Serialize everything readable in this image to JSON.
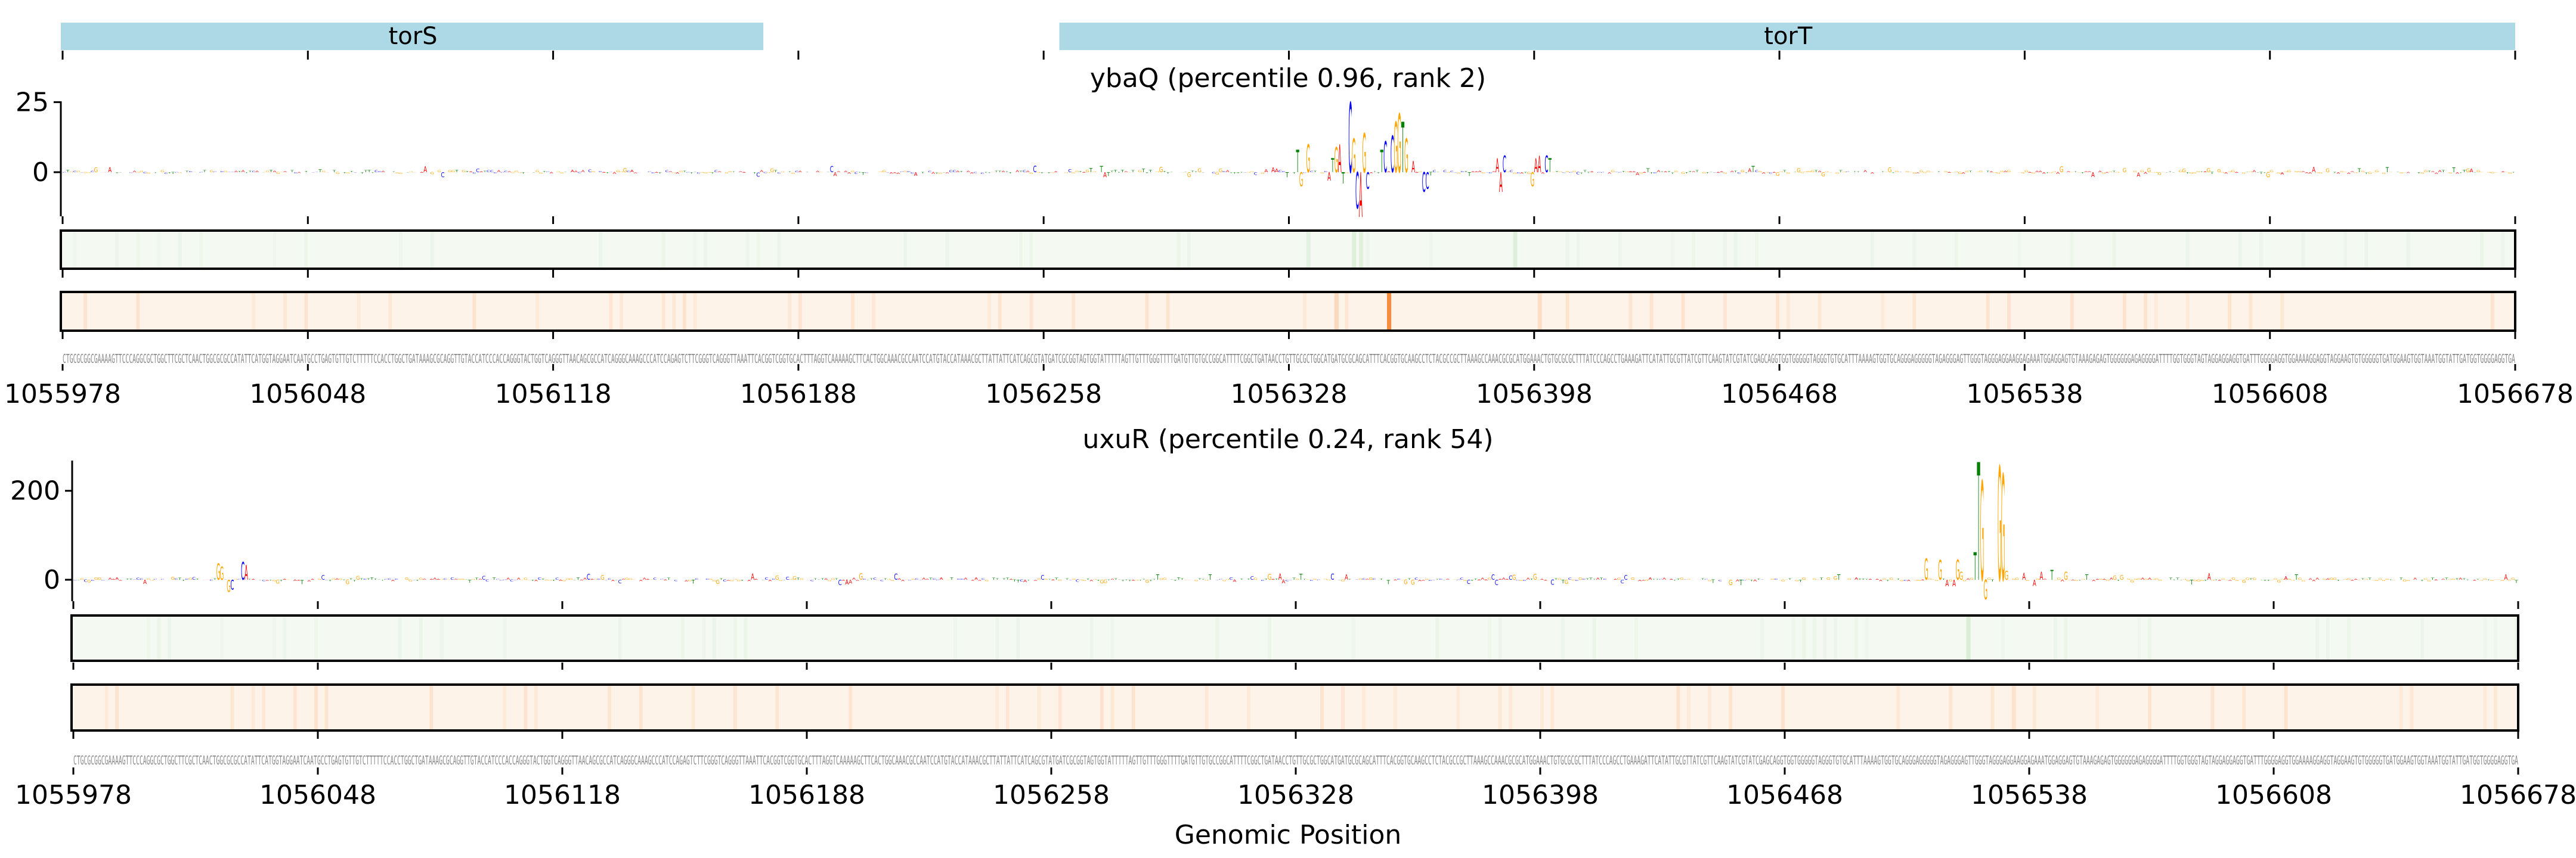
{
  "chart_data": {
    "type": "sequence-logo",
    "xlabel": "Genomic Position",
    "xlim": [
      1055978,
      1056678
    ],
    "xticks": [
      1055978,
      1056048,
      1056118,
      1056188,
      1056258,
      1056328,
      1056398,
      1056468,
      1056538,
      1056608,
      1056678
    ],
    "genes": [
      {
        "name": "torS",
        "start": 1055978,
        "end": 1056178
      },
      {
        "name": "torT",
        "start": 1056263,
        "end": 1056678
      }
    ],
    "gene_color": "#add8e6",
    "base_colors": {
      "A": "#ff0000",
      "C": "#0000ff",
      "G": "#ffa500",
      "T": "#008000"
    },
    "sequence": "CTGCGCGGCGAAAAGTTCCCAGGCGCTGGCTTCGCTCAACTGGCGCGCCATATTCATGGTAGGAATCAATGCCTGAGTGTTGTCTTTTTCCACCTGGCTGATAAAGCGCAGGTTGTACCATCCCACCAGGGTACTGGTCAGGGTTAACAGCGCCATCAGGGCAAAGCCCATCCAGAGTCTTCGGGTCAGGGTTAAATTCACGGTCGGTGCACTTTAGGTCAAAAAGCTTCACTGGCAAACGCCAATCCATGTACCATAAACGCTTATTATTCATCAGCGTATGATCGCGGTAGTGGTATTTTTAGTTGTTTGGGTTTTGATGTTGTGCCGGCATTTTCGGCTGATAACCTGTTGCGCTGGCATGATGCGCAGCATTTCACGGTGCAAGCCTCTACGCCGCTTAAAGCCAAACGCGCATGGAAACTGTGCGCGCTTTATCCCAGCCTGAAAGATTCATATTGCGTTATCGTTCAAGTATCGTATCGAGCAGGTGGTGGGGGTAGGGTGTGCATTTAAAAGTGGTGCAGGGAGGGGGTAGAGGGAGTTGGGTAGGGAGGAAGGAGAAATGGAGGAGTGTAAAGAGAGTGGGGGGAGAGGGGATTTTGGTGGGTAGTAGGAGGAGGTGATTTGGGGAGGTGGAAAAGGAGGTAGGAAGTGTGGGGGTGATGGAAGTGGTAAATGGTATTGATGGTGGGGAGGTGA",
    "panels": [
      {
        "title": "ybaQ (percentile 0.96, rank 2)",
        "yticks": [
          0,
          25
        ],
        "ylim": [
          -15.7,
          25.3
        ],
        "peaks": [
          {
            "i": 352,
            "v": 8
          },
          {
            "i": 353,
            "v": -5
          },
          {
            "i": 355,
            "v": 10
          },
          {
            "i": 361,
            "v": -3
          },
          {
            "i": 362,
            "v": 5
          },
          {
            "i": 363,
            "v": 9
          },
          {
            "i": 364,
            "v": 10
          },
          {
            "i": 365,
            "v": -4
          },
          {
            "i": 367,
            "v": 25
          },
          {
            "i": 368,
            "v": 12
          },
          {
            "i": 369,
            "v": -13
          },
          {
            "i": 370,
            "v": -16
          },
          {
            "i": 371,
            "v": 14
          },
          {
            "i": 372,
            "v": -6
          },
          {
            "i": 376,
            "v": 8
          },
          {
            "i": 377,
            "v": 11
          },
          {
            "i": 379,
            "v": 13
          },
          {
            "i": 380,
            "v": 18
          },
          {
            "i": 381,
            "v": 21
          },
          {
            "i": 382,
            "v": 18
          },
          {
            "i": 383,
            "v": 12
          },
          {
            "i": 385,
            "v": 4
          },
          {
            "i": 388,
            "v": -7
          },
          {
            "i": 389,
            "v": -6
          },
          {
            "i": 409,
            "v": 5
          },
          {
            "i": 410,
            "v": -7
          },
          {
            "i": 411,
            "v": 6
          },
          {
            "i": 419,
            "v": -5
          },
          {
            "i": 420,
            "v": 5
          },
          {
            "i": 421,
            "v": 6
          },
          {
            "i": 423,
            "v": 6
          },
          {
            "i": 424,
            "v": 5
          }
        ],
        "heat_green": [
          {
            "i": 355,
            "level": 0.3
          },
          {
            "i": 368,
            "level": 0.4
          },
          {
            "i": 370,
            "level": 0.35
          },
          {
            "i": 414,
            "level": 0.4
          }
        ],
        "heat_orange": [
          {
            "i": 363,
            "level": 0.25
          },
          {
            "i": 378,
            "level": 1.0
          },
          {
            "i": 421,
            "level": 0.2
          }
        ]
      },
      {
        "title": "uxuR (percentile 0.24, rank 54)",
        "yticks": [
          0,
          200
        ],
        "ylim": [
          -48,
          268
        ],
        "peaks": [
          {
            "i": 41,
            "v": 37
          },
          {
            "i": 42,
            "v": 30
          },
          {
            "i": 44,
            "v": -27
          },
          {
            "i": 45,
            "v": -22
          },
          {
            "i": 48,
            "v": 40
          },
          {
            "i": 49,
            "v": 33
          },
          {
            "i": 530,
            "v": 48
          },
          {
            "i": 534,
            "v": 44
          },
          {
            "i": 536,
            "v": -15
          },
          {
            "i": 538,
            "v": -15
          },
          {
            "i": 539,
            "v": 45
          },
          {
            "i": 540,
            "v": 18
          },
          {
            "i": 544,
            "v": 62
          },
          {
            "i": 545,
            "v": 265
          },
          {
            "i": 546,
            "v": 223
          },
          {
            "i": 547,
            "v": -44
          },
          {
            "i": 551,
            "v": 256
          },
          {
            "i": 552,
            "v": 238
          },
          {
            "i": 553,
            "v": 20
          },
          {
            "i": 558,
            "v": 16
          },
          {
            "i": 561,
            "v": -14
          },
          {
            "i": 563,
            "v": 18
          },
          {
            "i": 566,
            "v": 22
          },
          {
            "i": 570,
            "v": 18
          }
        ],
        "heat_green": [
          {
            "i": 542,
            "level": 0.5
          }
        ],
        "heat_orange": [
          {
            "i": 555,
            "level": 0.15
          }
        ]
      }
    ],
    "heat_colors": {
      "green_base": "#f4f9f2",
      "green_line": "#bfe3b8",
      "orange_base": "#fef3e8",
      "orange_line": "#f88b3c"
    }
  }
}
